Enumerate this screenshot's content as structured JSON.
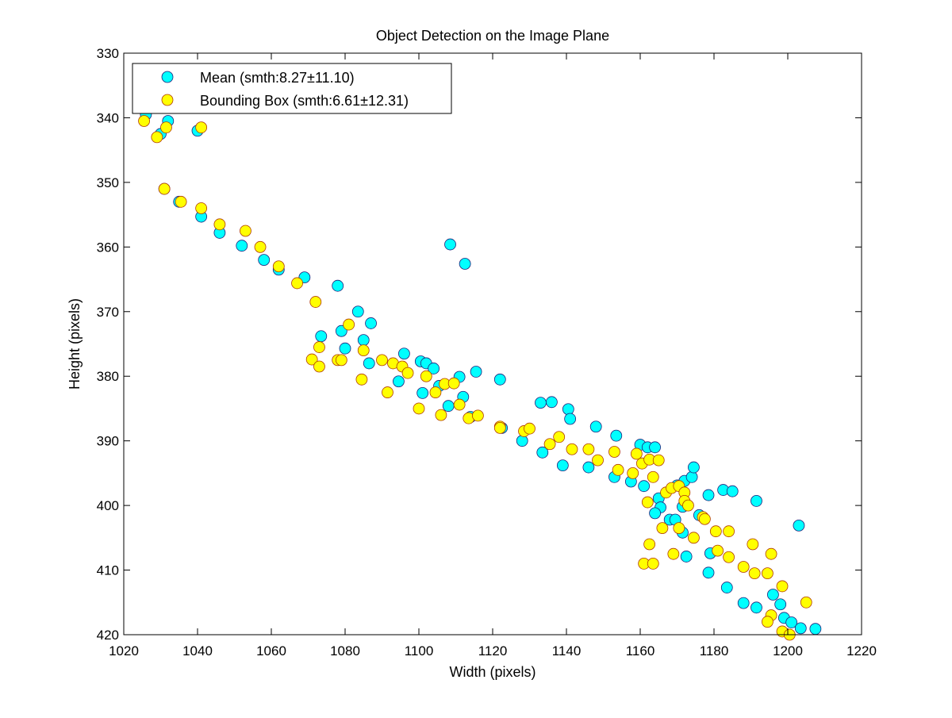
{
  "chart_data": {
    "type": "scatter",
    "title": "Object Detection on the Image Plane",
    "xlabel": "Width (pixels)",
    "ylabel": "Height (pixels)",
    "xlim": [
      1020,
      1220
    ],
    "ylim": [
      330,
      420
    ],
    "y_reversed": true,
    "grid": false,
    "legend_position": "top-left",
    "x_ticks": [
      "1020",
      "1040",
      "1060",
      "1080",
      "1100",
      "1120",
      "1140",
      "1160",
      "1180",
      "1200",
      "1220"
    ],
    "y_ticks": [
      "330",
      "340",
      "350",
      "360",
      "370",
      "380",
      "390",
      "400",
      "410",
      "420"
    ],
    "series": [
      {
        "name": "Mean (smth:8.27±11.10)",
        "color": "#00ffff",
        "points": [
          [
            1026,
            339.5
          ],
          [
            1030,
            342.5
          ],
          [
            1032,
            340.5
          ],
          [
            1040,
            342
          ],
          [
            1031,
            351
          ],
          [
            1035,
            353
          ],
          [
            1041,
            355.3
          ],
          [
            1046,
            357.8
          ],
          [
            1052,
            359.8
          ],
          [
            1058,
            362
          ],
          [
            1062,
            363.5
          ],
          [
            1069,
            364.7
          ],
          [
            1078,
            366
          ],
          [
            1073.5,
            373.8
          ],
          [
            1079,
            373
          ],
          [
            1080,
            375.7
          ],
          [
            1083.5,
            370
          ],
          [
            1085,
            374.4
          ],
          [
            1087,
            371.8
          ],
          [
            1086.5,
            378
          ],
          [
            1094.5,
            380.8
          ],
          [
            1096,
            376.5
          ],
          [
            1100.5,
            377.7
          ],
          [
            1102,
            378
          ],
          [
            1104,
            378.8
          ],
          [
            1105.5,
            381.5
          ],
          [
            1101,
            382.6
          ],
          [
            1108,
            384.6
          ],
          [
            1111,
            380.1
          ],
          [
            1112,
            383.2
          ],
          [
            1114,
            386.3
          ],
          [
            1115.5,
            379.3
          ],
          [
            1108.5,
            359.6
          ],
          [
            1112.5,
            362.6
          ],
          [
            1122,
            380.5
          ],
          [
            1122.5,
            388
          ],
          [
            1128,
            390
          ],
          [
            1133,
            384.1
          ],
          [
            1136,
            384
          ],
          [
            1133.5,
            391.8
          ],
          [
            1139,
            393.8
          ],
          [
            1140.5,
            385.1
          ],
          [
            1141,
            386.6
          ],
          [
            1146,
            394.1
          ],
          [
            1148,
            387.8
          ],
          [
            1153.5,
            389.2
          ],
          [
            1153,
            395.6
          ],
          [
            1157.5,
            396.3
          ],
          [
            1160,
            390.6
          ],
          [
            1162,
            391
          ],
          [
            1164,
            391
          ],
          [
            1161,
            397
          ],
          [
            1165,
            398.9
          ],
          [
            1165.5,
            400.3
          ],
          [
            1164,
            401.2
          ],
          [
            1168,
            402.2
          ],
          [
            1169.5,
            402.2
          ],
          [
            1170,
            396.9
          ],
          [
            1172,
            396.2
          ],
          [
            1174,
            395.6
          ],
          [
            1174.5,
            394.1
          ],
          [
            1176,
            401.5
          ],
          [
            1171.5,
            400.2
          ],
          [
            1171.5,
            404.2
          ],
          [
            1172.5,
            407.9
          ],
          [
            1178.5,
            398.4
          ],
          [
            1179,
            407.4
          ],
          [
            1178.5,
            410.4
          ],
          [
            1182.5,
            397.6
          ],
          [
            1185,
            397.8
          ],
          [
            1183.5,
            412.7
          ],
          [
            1191.5,
            399.3
          ],
          [
            1188,
            415.1
          ],
          [
            1191.5,
            415.8
          ],
          [
            1196,
            413.8
          ],
          [
            1198,
            415.3
          ],
          [
            1199,
            417.4
          ],
          [
            1201,
            418.1
          ],
          [
            1203,
            403.1
          ],
          [
            1203.5,
            419
          ],
          [
            1207.5,
            419.1
          ]
        ]
      },
      {
        "name": "Bounding Box (smth:6.61±12.31)",
        "color": "#ffff00",
        "points": [
          [
            1025.5,
            340.5
          ],
          [
            1029,
            343
          ],
          [
            1031.5,
            341.5
          ],
          [
            1041,
            341.5
          ],
          [
            1031,
            351
          ],
          [
            1035.5,
            353
          ],
          [
            1041,
            354
          ],
          [
            1046,
            356.5
          ],
          [
            1053,
            357.5
          ],
          [
            1057,
            360
          ],
          [
            1062,
            363
          ],
          [
            1067,
            365.6
          ],
          [
            1072,
            368.5
          ],
          [
            1071,
            377.4
          ],
          [
            1073,
            378.5
          ],
          [
            1073,
            375.5
          ],
          [
            1078,
            377.5
          ],
          [
            1079,
            377.5
          ],
          [
            1081,
            372
          ],
          [
            1084.5,
            380.5
          ],
          [
            1085,
            376
          ],
          [
            1090,
            377.5
          ],
          [
            1091.5,
            382.5
          ],
          [
            1093,
            378
          ],
          [
            1095.5,
            378.5
          ],
          [
            1097,
            379.5
          ],
          [
            1100,
            385
          ],
          [
            1102,
            380
          ],
          [
            1104.5,
            382.5
          ],
          [
            1106,
            386
          ],
          [
            1107,
            381.2
          ],
          [
            1109.5,
            381.1
          ],
          [
            1111,
            384.4
          ],
          [
            1113.5,
            386.5
          ],
          [
            1116,
            386.1
          ],
          [
            1122,
            387.8
          ],
          [
            1122,
            388
          ],
          [
            1128.5,
            388.5
          ],
          [
            1130,
            388.1
          ],
          [
            1135.5,
            390.5
          ],
          [
            1138,
            389.4
          ],
          [
            1141.5,
            391.3
          ],
          [
            1146,
            391.3
          ],
          [
            1148.5,
            393
          ],
          [
            1153,
            391.7
          ],
          [
            1154,
            394.5
          ],
          [
            1158,
            395
          ],
          [
            1159,
            392
          ],
          [
            1160.5,
            393.5
          ],
          [
            1162.5,
            392.9
          ],
          [
            1163.5,
            395.6
          ],
          [
            1165,
            393
          ],
          [
            1162,
            399.5
          ],
          [
            1161,
            409
          ],
          [
            1162.5,
            406
          ],
          [
            1163.5,
            409
          ],
          [
            1166,
            403.5
          ],
          [
            1167,
            398
          ],
          [
            1168.5,
            397.3
          ],
          [
            1169,
            407.5
          ],
          [
            1170.5,
            397
          ],
          [
            1170.5,
            403.5
          ],
          [
            1172,
            398
          ],
          [
            1172,
            399.3
          ],
          [
            1173,
            400
          ],
          [
            1174.5,
            405
          ],
          [
            1177,
            401.8
          ],
          [
            1177.5,
            402.1
          ],
          [
            1180.5,
            404
          ],
          [
            1181,
            407
          ],
          [
            1184,
            404
          ],
          [
            1184,
            408
          ],
          [
            1188,
            409.5
          ],
          [
            1190.5,
            406
          ],
          [
            1191,
            410.5
          ],
          [
            1194.5,
            410.5
          ],
          [
            1195.5,
            407.5
          ],
          [
            1195.5,
            417
          ],
          [
            1198.5,
            412.5
          ],
          [
            1194.5,
            418
          ],
          [
            1198.5,
            419.5
          ],
          [
            1200.5,
            420
          ],
          [
            1205,
            415
          ]
        ]
      }
    ]
  }
}
